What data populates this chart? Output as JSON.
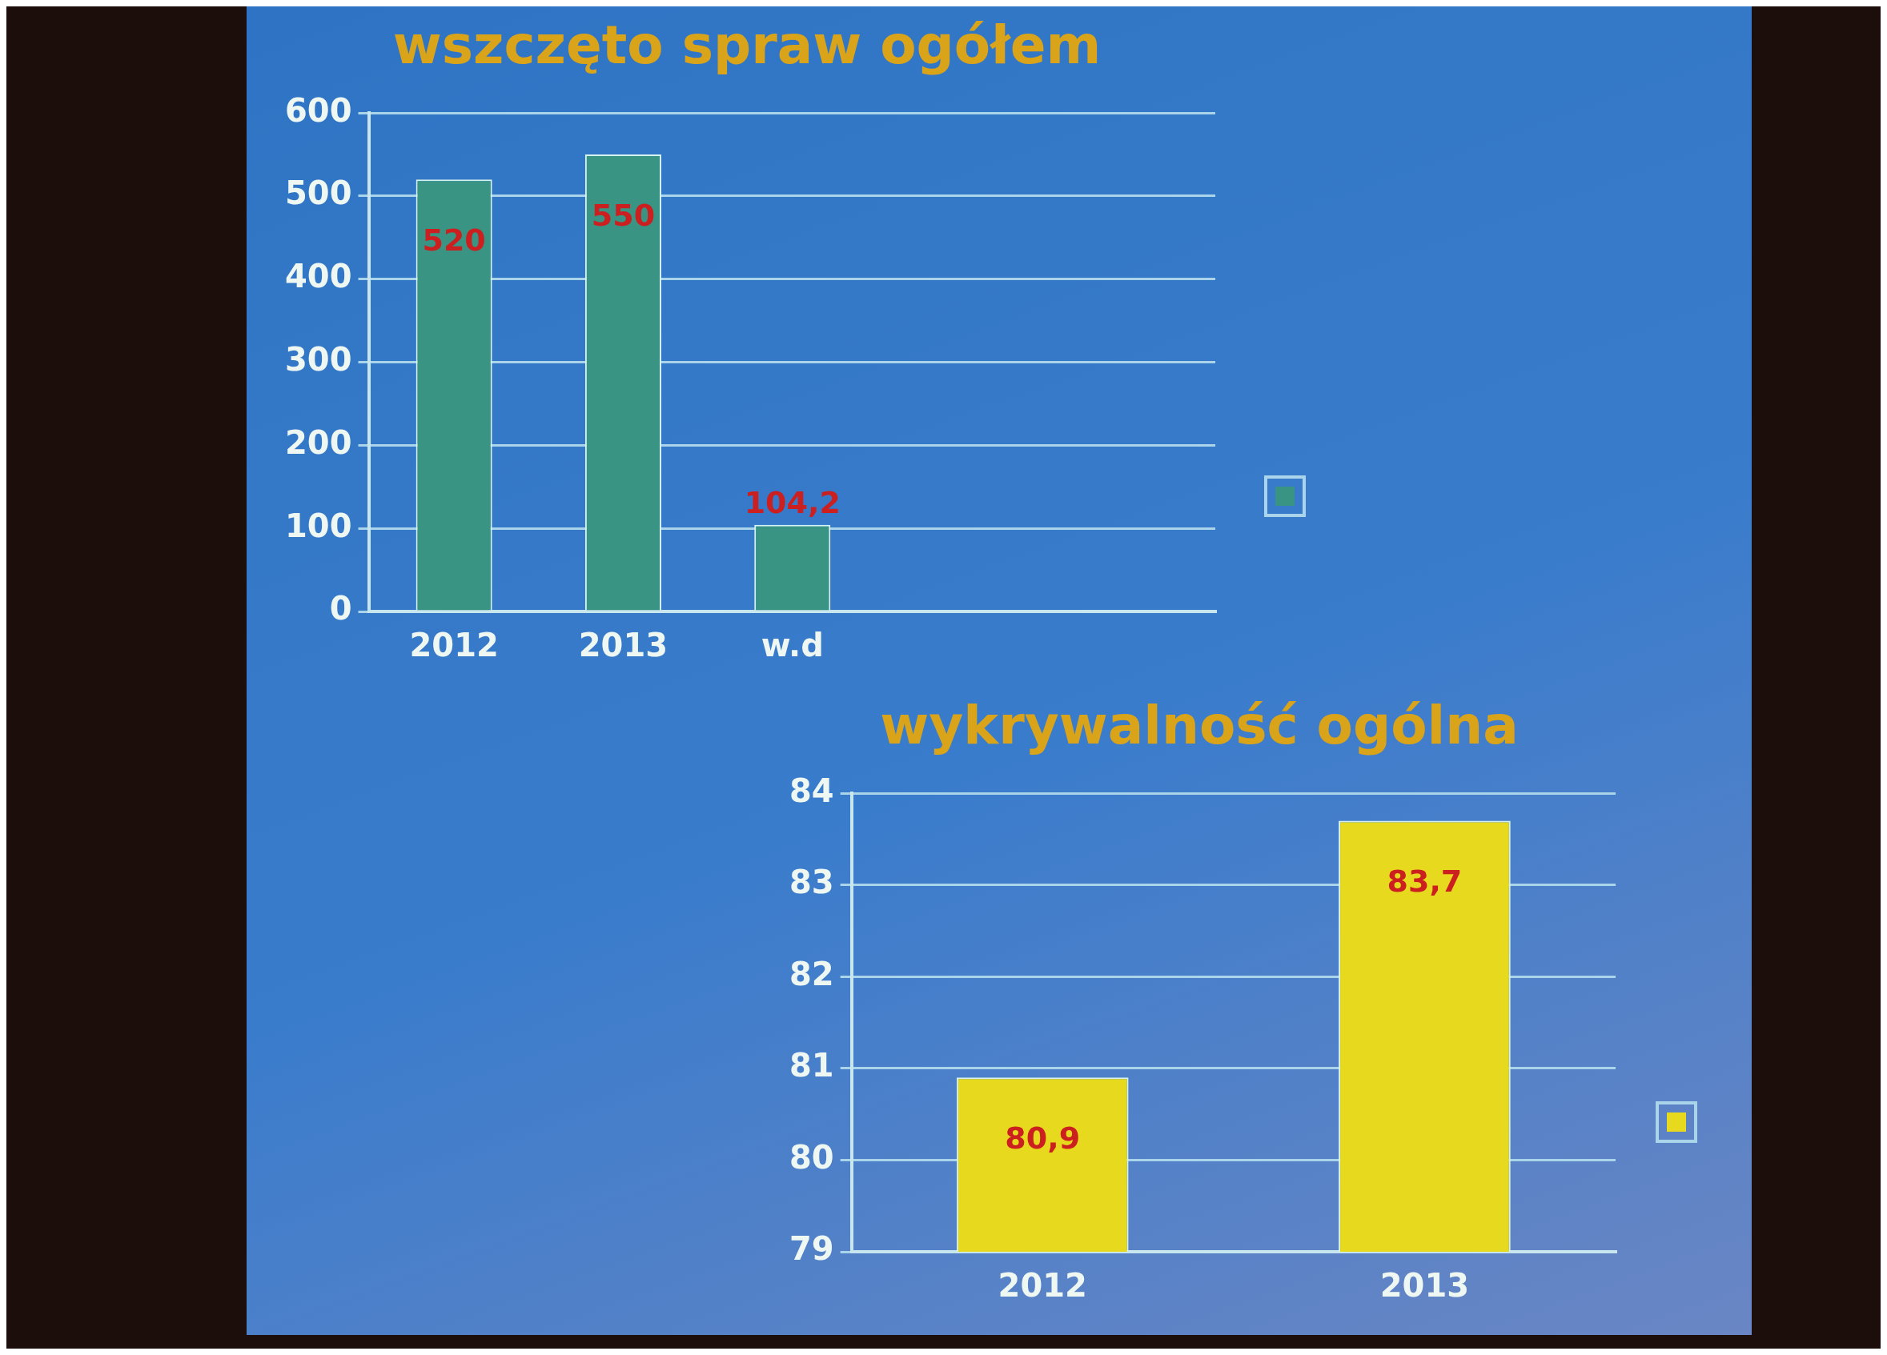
{
  "chart_data": [
    {
      "type": "bar",
      "title": "wszczęto spraw ogółem",
      "categories": [
        "2012",
        "2013",
        "w.d",
        null,
        null
      ],
      "values": [
        520,
        550,
        104.2,
        null,
        null
      ],
      "color": "#3a9484",
      "value_labels": [
        "520",
        "550",
        "104,2",
        null,
        null
      ],
      "ylim": [
        0,
        600
      ],
      "yticks": [
        0,
        100,
        200,
        300,
        400,
        500,
        600
      ],
      "grid": "y"
    },
    {
      "type": "bar",
      "title": "wykrywalność ogólna",
      "categories": [
        "2012",
        "2013"
      ],
      "values": [
        80.9,
        83.7
      ],
      "color": "#e6d91e",
      "value_labels": [
        "80,9",
        "83,7"
      ],
      "ylim": [
        79,
        84
      ],
      "yticks": [
        79,
        80,
        81,
        82,
        83,
        84
      ],
      "grid": "y"
    }
  ]
}
